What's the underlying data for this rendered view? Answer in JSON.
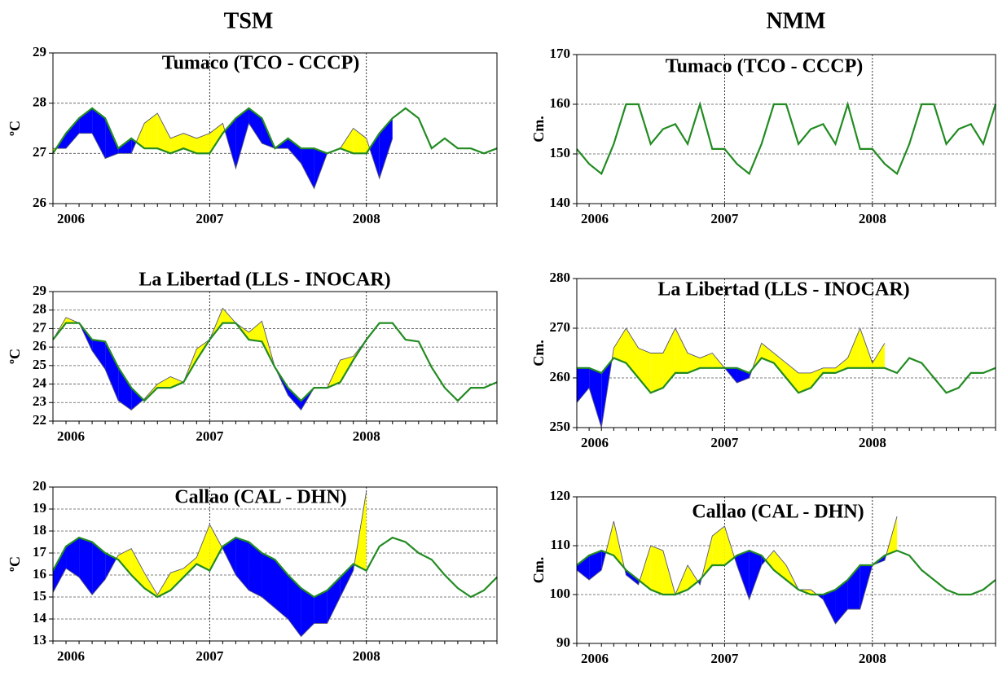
{
  "column_titles": [
    "TSM",
    "NMM"
  ],
  "chart_data": [
    {
      "type": "line",
      "title": "Tumaco (TCO - CCCP)",
      "y_label": "ºC",
      "ylim": [
        26,
        29
      ],
      "yticks": [
        26,
        27,
        28,
        29
      ],
      "grid": true,
      "fill_above": "#ffff00",
      "fill_below": "#0000ff",
      "categories": [
        "2006",
        null,
        null,
        null,
        null,
        null,
        null,
        null,
        null,
        null,
        null,
        null,
        "2007",
        null,
        null,
        null,
        null,
        null,
        null,
        null,
        null,
        null,
        null,
        null,
        "2008",
        null,
        null,
        null,
        null,
        null,
        null,
        null,
        null,
        null,
        null
      ],
      "series": [
        {
          "color": "#555577",
          "values": [
            27.1,
            27.1,
            27.4,
            27.4,
            26.9,
            27.0,
            27.0,
            27.6,
            27.8,
            27.3,
            27.4,
            27.3,
            27.4,
            27.6,
            26.7,
            27.6,
            27.2,
            27.1,
            27.1,
            26.8,
            26.3,
            27.0,
            27.1,
            27.5,
            27.3,
            26.5,
            27.3,
            null,
            null,
            null,
            null,
            null,
            null,
            null,
            null
          ]
        },
        {
          "color": "#228b22",
          "values": [
            27.0,
            27.4,
            27.7,
            27.9,
            27.7,
            27.1,
            27.3,
            27.1,
            27.1,
            27.0,
            27.1,
            27.0,
            27.0,
            27.4,
            27.7,
            27.9,
            27.7,
            27.1,
            27.3,
            27.1,
            27.1,
            27.0,
            27.1,
            27.0,
            27.0,
            27.4,
            27.7,
            27.9,
            27.7,
            27.1,
            27.3,
            27.1,
            27.1,
            27.0,
            27.1
          ]
        }
      ]
    },
    {
      "type": "line",
      "title": "Tumaco (TCO - CCCP)",
      "y_label": "Cm.",
      "ylim": [
        140,
        170
      ],
      "yticks": [
        140,
        150,
        160,
        170
      ],
      "grid": true,
      "fill_above": "#ffff00",
      "fill_below": "#0000ff",
      "categories": [
        "2006",
        null,
        null,
        null,
        null,
        null,
        null,
        null,
        null,
        null,
        null,
        null,
        "2007",
        null,
        null,
        null,
        null,
        null,
        null,
        null,
        null,
        null,
        null,
        null,
        "2008",
        null,
        null,
        null,
        null,
        null,
        null,
        null,
        null,
        null,
        null
      ],
      "series": [
        {
          "color": "#228b22",
          "values": [
            151,
            148,
            146,
            152,
            160,
            160,
            152,
            155,
            156,
            152,
            160,
            151,
            151,
            148,
            146,
            152,
            160,
            160,
            152,
            155,
            156,
            152,
            160,
            151,
            151,
            148,
            146,
            152,
            160,
            160,
            152,
            155,
            156,
            152,
            160
          ]
        }
      ]
    },
    {
      "type": "line",
      "title": "La Libertad (LLS - INOCAR)",
      "y_label": "ºC",
      "ylim": [
        22,
        29
      ],
      "yticks": [
        22,
        23,
        24,
        25,
        26,
        27,
        28,
        29
      ],
      "grid": true,
      "fill_above": "#ffff00",
      "fill_below": "#0000ff",
      "categories": [
        "2006",
        null,
        null,
        null,
        null,
        null,
        null,
        null,
        null,
        null,
        null,
        null,
        "2007",
        null,
        null,
        null,
        null,
        null,
        null,
        null,
        null,
        null,
        null,
        null,
        "2008",
        null,
        null,
        null,
        null,
        null,
        null,
        null,
        null,
        null,
        null
      ],
      "series": [
        {
          "color": "#555577",
          "values": [
            26.4,
            27.6,
            27.3,
            25.8,
            24.8,
            23.1,
            22.6,
            23.2,
            24.0,
            24.4,
            24.1,
            25.9,
            26.4,
            28.1,
            27.3,
            26.8,
            27.4,
            24.9,
            23.4,
            22.6,
            23.8,
            23.8,
            25.3,
            25.5,
            26.4,
            27.3,
            null,
            null,
            null,
            null,
            null,
            null,
            null,
            null,
            null
          ]
        },
        {
          "color": "#228b22",
          "values": [
            26.4,
            27.3,
            27.3,
            26.4,
            26.3,
            24.9,
            23.8,
            23.1,
            23.8,
            23.8,
            24.1,
            25.3,
            26.4,
            27.3,
            27.3,
            26.4,
            26.3,
            24.9,
            23.8,
            23.1,
            23.8,
            23.8,
            24.1,
            25.3,
            26.4,
            27.3,
            27.3,
            26.4,
            26.3,
            24.9,
            23.8,
            23.1,
            23.8,
            23.8,
            24.1
          ]
        }
      ]
    },
    {
      "type": "line",
      "title": "La Libertad (LLS - INOCAR)",
      "y_label": "Cm.",
      "ylim": [
        250,
        280
      ],
      "yticks": [
        250,
        260,
        270,
        280
      ],
      "grid": true,
      "fill_above": "#ffff00",
      "fill_below": "#0000ff",
      "categories": [
        "2006",
        null,
        null,
        null,
        null,
        null,
        null,
        null,
        null,
        null,
        null,
        null,
        "2007",
        null,
        null,
        null,
        null,
        null,
        null,
        null,
        null,
        null,
        null,
        null,
        "2008",
        null,
        null,
        null,
        null,
        null,
        null,
        null,
        null,
        null,
        null
      ],
      "series": [
        {
          "color": "#555577",
          "values": [
            255,
            258,
            250,
            266,
            270,
            266,
            265,
            265,
            270,
            265,
            264,
            265,
            262,
            259,
            260,
            267,
            265,
            263,
            261,
            261,
            262,
            262,
            264,
            270,
            263,
            267,
            null,
            null,
            null,
            null,
            null,
            null,
            null,
            null,
            null
          ]
        },
        {
          "color": "#228b22",
          "values": [
            262,
            262,
            261,
            264,
            263,
            260,
            257,
            258,
            261,
            261,
            262,
            262,
            262,
            262,
            261,
            264,
            263,
            260,
            257,
            258,
            261,
            261,
            262,
            262,
            262,
            262,
            261,
            264,
            263,
            260,
            257,
            258,
            261,
            261,
            262
          ]
        }
      ]
    },
    {
      "type": "line",
      "title": "Callao (CAL - DHN)",
      "y_label": "ºC",
      "ylim": [
        13,
        20
      ],
      "yticks": [
        13,
        14,
        15,
        16,
        17,
        18,
        19,
        20
      ],
      "grid": true,
      "fill_above": "#ffff00",
      "fill_below": "#0000ff",
      "categories": [
        "2006",
        null,
        null,
        null,
        null,
        null,
        null,
        null,
        null,
        null,
        null,
        null,
        "2007",
        null,
        null,
        null,
        null,
        null,
        null,
        null,
        null,
        null,
        null,
        null,
        "2008",
        null,
        null,
        null,
        null,
        null,
        null,
        null,
        null,
        null,
        null
      ],
      "series": [
        {
          "color": "#555577",
          "values": [
            15.2,
            16.3,
            15.9,
            15.1,
            15.8,
            16.9,
            17.2,
            16.1,
            15.1,
            16.1,
            16.3,
            16.8,
            18.3,
            17.2,
            16.0,
            15.3,
            15.0,
            14.5,
            14.0,
            13.2,
            13.8,
            13.8,
            15.0,
            16.2,
            19.8,
            null,
            null,
            null,
            null,
            null,
            null,
            null,
            null,
            null,
            null
          ]
        },
        {
          "color": "#228b22",
          "values": [
            16.2,
            17.3,
            17.7,
            17.5,
            17.0,
            16.7,
            16.0,
            15.4,
            15.0,
            15.3,
            15.9,
            16.5,
            16.2,
            17.3,
            17.7,
            17.5,
            17.0,
            16.7,
            16.0,
            15.4,
            15.0,
            15.3,
            15.9,
            16.5,
            16.2,
            17.3,
            17.7,
            17.5,
            17.0,
            16.7,
            16.0,
            15.4,
            15.0,
            15.3,
            15.9
          ]
        }
      ]
    },
    {
      "type": "line",
      "title": "Callao (CAL - DHN)",
      "y_label": "Cm.",
      "ylim": [
        90,
        120
      ],
      "yticks": [
        90,
        100,
        110,
        120
      ],
      "grid": true,
      "fill_above": "#ffff00",
      "fill_below": "#0000ff",
      "categories": [
        "2006",
        null,
        null,
        null,
        null,
        null,
        null,
        null,
        null,
        null,
        null,
        null,
        "2007",
        null,
        null,
        null,
        null,
        null,
        null,
        null,
        null,
        null,
        null,
        null,
        "2008",
        null,
        null,
        null,
        null,
        null,
        null,
        null,
        null,
        null,
        null
      ],
      "series": [
        {
          "color": "#555577",
          "values": [
            105,
            103,
            105,
            115,
            104,
            102,
            110,
            109,
            100,
            106,
            102,
            112,
            114,
            106,
            99,
            106,
            109,
            106,
            101,
            101,
            99,
            94,
            97,
            97,
            106,
            107,
            116,
            null,
            null,
            null,
            null,
            null,
            null,
            null,
            null
          ]
        },
        {
          "color": "#228b22",
          "values": [
            106,
            108,
            109,
            108,
            105,
            103,
            101,
            100,
            100,
            101,
            103,
            106,
            106,
            108,
            109,
            108,
            105,
            103,
            101,
            100,
            100,
            101,
            103,
            106,
            106,
            108,
            109,
            108,
            105,
            103,
            101,
            100,
            100,
            101,
            103
          ]
        }
      ]
    }
  ]
}
